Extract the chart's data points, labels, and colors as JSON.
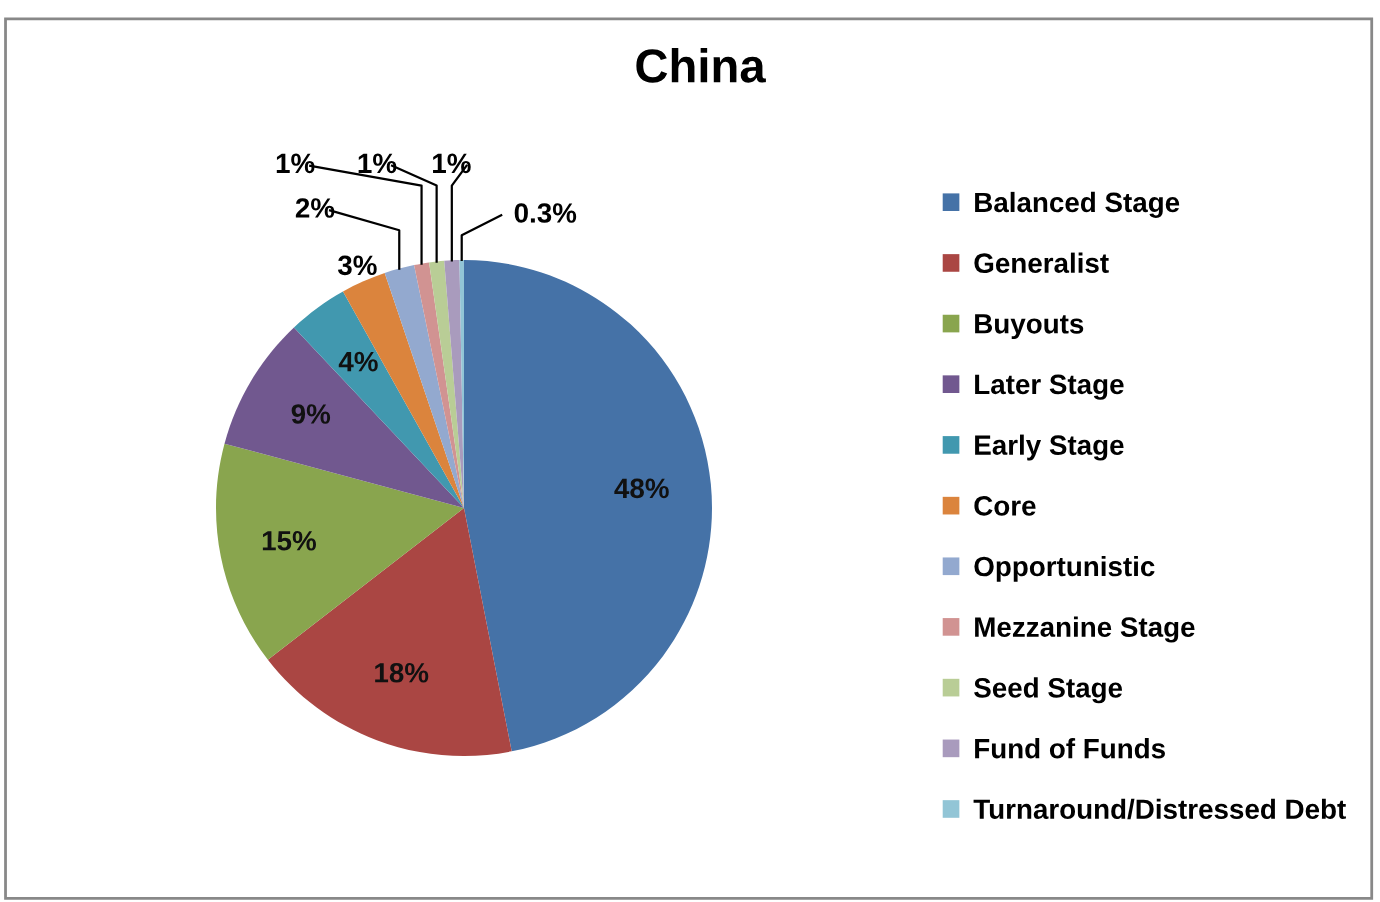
{
  "chart_data": {
    "type": "pie",
    "title": "China",
    "categories": [
      "Balanced Stage",
      "Generalist",
      "Buyouts",
      "Later Stage",
      "Early Stage",
      "Core",
      "Opportunistic",
      "Mezzanine Stage",
      "Seed Stage",
      "Fund of Funds",
      "Turnaround/Distressed Debt"
    ],
    "values": [
      48,
      18,
      15,
      9,
      4,
      3,
      2,
      1,
      1,
      1,
      0.3
    ],
    "value_labels": [
      "48%",
      "18%",
      "15%",
      "9%",
      "4%",
      "3%",
      "2%",
      "1%",
      "1%",
      "1%",
      "0.3%"
    ],
    "colors": [
      "#4572a7",
      "#aa4643",
      "#89a54e",
      "#71588f",
      "#4198af",
      "#db843d",
      "#93a9cf",
      "#d19392",
      "#b9cd96",
      "#a99bbd",
      "#92c5d6"
    ],
    "legend": "right"
  }
}
